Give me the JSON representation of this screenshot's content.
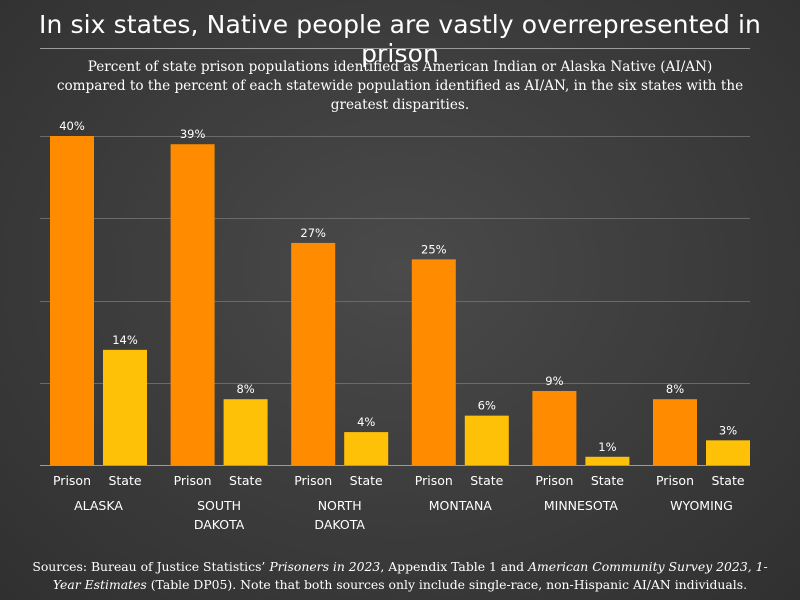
{
  "title": "In six states, Native people are vastly overrepresented in prison",
  "subtitle": "Percent of state prison populations identified as American Indian or Alaska Native (AI/AN) compared to the percent of each statewide population identified as AI/AN, in the six states with the greatest disparities.",
  "source": {
    "p1": "Sources: Bureau of Justice Statistics’ ",
    "i1": "Prisoners in 2023",
    "p2": ", Appendix Table 1 and ",
    "i2": "American Community Survey 2023, 1-Year Estimates",
    "p3": " (Table DP05). Note that both sources only include single-race, non-Hispanic AI/AN individuals."
  },
  "colors": {
    "prison": "#FF8C00",
    "state": "#FFC107",
    "grid": "#6a6a6a"
  },
  "chart_data": {
    "type": "bar",
    "categories": [
      "ALASKA",
      "SOUTH DAKOTA",
      "NORTH DAKOTA",
      "MONTANA",
      "MINNESOTA",
      "WYOMING"
    ],
    "category_lines": [
      [
        "ALASKA"
      ],
      [
        "SOUTH",
        "DAKOTA"
      ],
      [
        "NORTH",
        "DAKOTA"
      ],
      [
        "MONTANA"
      ],
      [
        "MINNESOTA"
      ],
      [
        "WYOMING"
      ]
    ],
    "series": [
      {
        "name": "Prison",
        "values": [
          40,
          39,
          27,
          25,
          9,
          8
        ],
        "labels": [
          "40%",
          "39%",
          "27%",
          "25%",
          "9%",
          "8%"
        ]
      },
      {
        "name": "State",
        "values": [
          14,
          8,
          4,
          6,
          1,
          3
        ],
        "labels": [
          "14%",
          "8%",
          "4%",
          "6%",
          "1%",
          "3%"
        ]
      }
    ],
    "ylim": [
      0,
      40
    ],
    "grid": true,
    "legend": "none"
  }
}
